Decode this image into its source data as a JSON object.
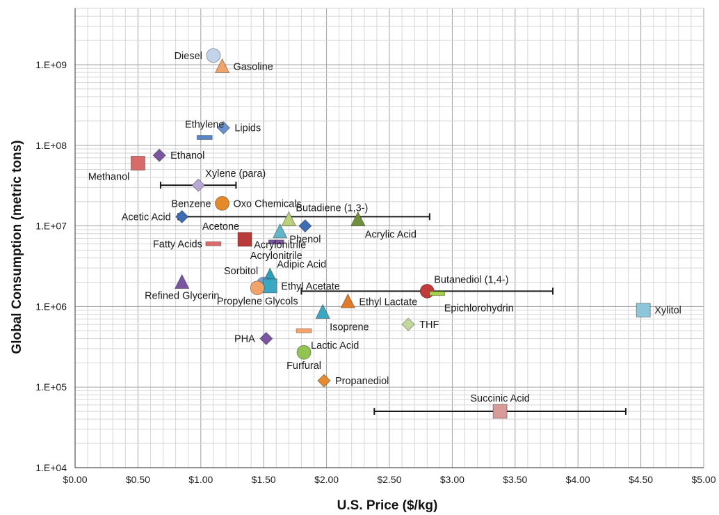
{
  "chart_data": {
    "type": "scatter",
    "title": "",
    "xlabel": "U.S. Price ($/kg)",
    "ylabel": "Global Consumption (metric tons)",
    "x_scale": "linear",
    "y_scale": "log",
    "xlim": [
      0,
      5
    ],
    "ylim": [
      10000,
      5000000000
    ],
    "x_tick_labels": [
      "$0.00",
      "$0.50",
      "$1.00",
      "$1.50",
      "$2.00",
      "$2.50",
      "$3.00",
      "$3.50",
      "$4.00",
      "$4.50",
      "$5.00"
    ],
    "y_tick_labels": [
      "1.E+04",
      "1.E+05",
      "1.E+06",
      "1.E+07",
      "1.E+08",
      "1.E+09"
    ],
    "grid": true,
    "legend": "none",
    "points": [
      {
        "label": "Diesel",
        "x": 1.1,
        "y": 1300000000,
        "marker": "circle",
        "color": "#c3d3ea",
        "label_pos": "left"
      },
      {
        "label": "Gasoline",
        "x": 1.17,
        "y": 950000000,
        "marker": "triangle",
        "color": "#f2a36b",
        "label_pos": "right"
      },
      {
        "label": "Lipids",
        "x": 1.18,
        "y": 165000000,
        "marker": "diamond",
        "color": "#6a91cc",
        "label_pos": "right"
      },
      {
        "label": "Ethylene",
        "x": 1.03,
        "y": 125000000,
        "marker": "dash",
        "color": "#5a84c6",
        "label_pos": "above"
      },
      {
        "label": "Ethanol",
        "x": 0.67,
        "y": 75000000,
        "marker": "diamond",
        "color": "#7a55a0",
        "label_pos": "right"
      },
      {
        "label": "Methanol",
        "x": 0.5,
        "y": 60000000,
        "marker": "square",
        "color": "#d86a6a",
        "label_pos": "below-left"
      },
      {
        "label": "Xylene (para)",
        "x": 0.98,
        "y": 32000000,
        "marker": "diamond",
        "color": "#b6a7d4",
        "label_pos": "above-right",
        "x_range": [
          0.68,
          1.28
        ]
      },
      {
        "label": "Benzene",
        "x": 1.17,
        "y": 19000000,
        "marker": "circle",
        "color": "#e48a2a",
        "label_pos": "left"
      },
      {
        "label": "Oxo Chemicals",
        "x": 1.17,
        "y": 19000000,
        "marker": "none",
        "color": "#e48a2a",
        "label_pos": "right"
      },
      {
        "label": "Acetic Acid",
        "x": 0.85,
        "y": 13000000,
        "marker": "diamond",
        "color": "#3e6cb5",
        "label_pos": "left",
        "x_range": [
          0.82,
          2.82
        ]
      },
      {
        "label": "Butadiene (1,3-)",
        "x": 1.7,
        "y": 12000000,
        "marker": "triangle",
        "color": "#b9d27a",
        "label_pos": "above-right"
      },
      {
        "label": "Acrylic Acid",
        "x": 2.25,
        "y": 12000000,
        "marker": "triangle",
        "color": "#6f8f3a",
        "label_pos": "below-right"
      },
      {
        "label": "Phenol",
        "x": 1.83,
        "y": 10000000,
        "marker": "diamond",
        "color": "#3e6cb5",
        "label_pos": "below"
      },
      {
        "label": "Acrylonitrile",
        "x": 1.63,
        "y": 8500000,
        "marker": "triangle",
        "color": "#63b5c9",
        "label_pos": "below"
      },
      {
        "label": "Acetone",
        "x": 1.35,
        "y": 6800000,
        "marker": "square",
        "color": "#b83a3a",
        "label_pos": "above-left"
      },
      {
        "label": "Fatty Acids",
        "x": 1.1,
        "y": 6000000,
        "marker": "dash",
        "color": "#d86a6a",
        "label_pos": "left"
      },
      {
        "label": "Acrylonitrile",
        "x": 1.6,
        "y": 6300000,
        "marker": "dash",
        "color": "#7a55a0",
        "label_pos": "below"
      },
      {
        "label": "Adipic Acid",
        "x": 1.55,
        "y": 2400000,
        "marker": "triangle",
        "color": "#2e9fb8",
        "label_pos": "above-right"
      },
      {
        "label": "Sorbitol",
        "x": 1.5,
        "y": 1900000,
        "marker": "circle",
        "color": "#7fa2d4",
        "label_pos": "above-left"
      },
      {
        "label": "Ethyl Acetate",
        "x": 1.55,
        "y": 1800000,
        "marker": "square",
        "color": "#3ba7c2",
        "label_pos": "right"
      },
      {
        "label": "Propylene Glycols",
        "x": 1.45,
        "y": 1700000,
        "marker": "circle",
        "color": "#f2a36b",
        "label_pos": "below"
      },
      {
        "label": "Refined Glycerin",
        "x": 0.85,
        "y": 2000000,
        "marker": "triangle",
        "color": "#7a55a0",
        "label_pos": "below"
      },
      {
        "label": "Butanediol (1,4-)",
        "x": 2.8,
        "y": 1550000,
        "marker": "circle",
        "color": "#c23b3b",
        "label_pos": "above-right",
        "x_range": [
          1.8,
          3.8
        ]
      },
      {
        "label": "Epichlorohydrin",
        "x": 2.88,
        "y": 1450000,
        "marker": "dash",
        "color": "#a6cf4e",
        "label_pos": "below-right"
      },
      {
        "label": "Ethyl Lactate",
        "x": 2.17,
        "y": 1150000,
        "marker": "triangle",
        "color": "#e07b2b",
        "label_pos": "right"
      },
      {
        "label": "Xylitol",
        "x": 4.52,
        "y": 900000,
        "marker": "square",
        "color": "#8ec5d9",
        "label_pos": "right"
      },
      {
        "label": "Isoprene",
        "x": 1.97,
        "y": 850000,
        "marker": "triangle",
        "color": "#3ba7c2",
        "label_pos": "below-right"
      },
      {
        "label": "THF",
        "x": 2.65,
        "y": 600000,
        "marker": "diamond",
        "color": "#c2d99b",
        "label_pos": "right"
      },
      {
        "label": "Lactic Acid",
        "x": 1.82,
        "y": 500000,
        "marker": "dash",
        "color": "#f2a36b",
        "label_pos": "below-right"
      },
      {
        "label": "PHA",
        "x": 1.52,
        "y": 400000,
        "marker": "diamond",
        "color": "#7a55a0",
        "label_pos": "left"
      },
      {
        "label": "Furfural",
        "x": 1.82,
        "y": 270000,
        "marker": "circle",
        "color": "#93c353",
        "label_pos": "below"
      },
      {
        "label": "Propanediol",
        "x": 1.98,
        "y": 120000,
        "marker": "diamond",
        "color": "#e88a2e",
        "label_pos": "right"
      },
      {
        "label": "Succinic Acid",
        "x": 3.38,
        "y": 50000,
        "marker": "square",
        "color": "#d99a9a",
        "label_pos": "above",
        "x_range": [
          2.38,
          4.38
        ]
      }
    ]
  }
}
